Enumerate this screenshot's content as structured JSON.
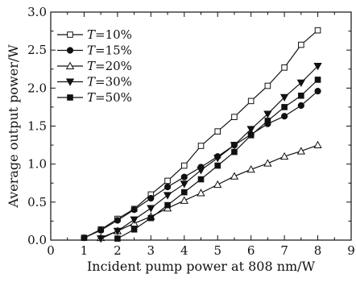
{
  "chart_data": {
    "type": "line",
    "xlabel": "Incident pump power at 808 nm/W",
    "ylabel": "Average output power/W",
    "xlim": [
      0,
      9
    ],
    "ylim": [
      0,
      3.0
    ],
    "xticks": [
      0,
      1,
      2,
      3,
      4,
      5,
      6,
      7,
      8,
      9
    ],
    "yticks": [
      0.0,
      0.5,
      1.0,
      1.5,
      2.0,
      2.5,
      3.0
    ],
    "ytick_labels": [
      "0.0",
      "0.5",
      "1.0",
      "1.5",
      "2.0",
      "2.5",
      "3.0"
    ],
    "legend_position": "top-left",
    "grid": false,
    "series": [
      {
        "name": "T=10%",
        "name_italic": "T",
        "name_rest": "=10%",
        "marker": "square-open",
        "color": "#111111",
        "x": [
          1.0,
          1.5,
          2.0,
          2.5,
          3.0,
          3.5,
          4.0,
          4.5,
          5.0,
          5.5,
          6.0,
          6.5,
          7.0,
          7.5,
          8.0
        ],
        "y": [
          0.03,
          0.14,
          0.28,
          0.41,
          0.6,
          0.78,
          0.98,
          1.24,
          1.43,
          1.62,
          1.83,
          2.03,
          2.27,
          2.57,
          2.76
        ]
      },
      {
        "name": "T=15%",
        "name_italic": "T",
        "name_rest": "=15%",
        "marker": "circle-filled",
        "color": "#111111",
        "x": [
          1.0,
          1.5,
          2.0,
          2.5,
          3.0,
          3.5,
          4.0,
          4.5,
          5.0,
          5.5,
          6.0,
          6.5,
          7.0,
          7.5,
          8.0
        ],
        "y": [
          0.03,
          0.13,
          0.26,
          0.4,
          0.55,
          0.7,
          0.83,
          0.96,
          1.1,
          1.25,
          1.39,
          1.53,
          1.63,
          1.77,
          1.96
        ]
      },
      {
        "name": "T=20%",
        "name_italic": "T",
        "name_rest": "=20%",
        "marker": "triangle-up-open",
        "color": "#111111",
        "x": [
          1.5,
          2.0,
          2.5,
          3.0,
          3.5,
          4.0,
          4.5,
          5.0,
          5.5,
          6.0,
          6.5,
          7.0,
          7.5,
          8.0
        ],
        "y": [
          0.03,
          0.12,
          0.22,
          0.31,
          0.42,
          0.52,
          0.62,
          0.73,
          0.84,
          0.93,
          1.01,
          1.1,
          1.17,
          1.25
        ]
      },
      {
        "name": "T=30%",
        "name_italic": "T",
        "name_rest": "=30%",
        "marker": "triangle-down-filled",
        "color": "#111111",
        "x": [
          1.5,
          2.0,
          2.5,
          3.0,
          3.5,
          4.0,
          4.5,
          5.0,
          5.5,
          6.0,
          6.5,
          7.0,
          7.5,
          8.0
        ],
        "y": [
          0.02,
          0.12,
          0.27,
          0.42,
          0.59,
          0.74,
          0.92,
          1.08,
          1.25,
          1.46,
          1.66,
          1.88,
          2.07,
          2.29
        ]
      },
      {
        "name": "T=50%",
        "name_italic": "T",
        "name_rest": "=50%",
        "marker": "square-filled",
        "color": "#111111",
        "x": [
          2.0,
          2.5,
          3.0,
          3.5,
          4.0,
          4.5,
          5.0,
          5.5,
          6.0,
          6.5,
          7.0,
          7.5,
          8.0
        ],
        "y": [
          0.02,
          0.14,
          0.29,
          0.46,
          0.63,
          0.8,
          0.98,
          1.16,
          1.38,
          1.57,
          1.75,
          1.9,
          2.11
        ]
      }
    ]
  }
}
